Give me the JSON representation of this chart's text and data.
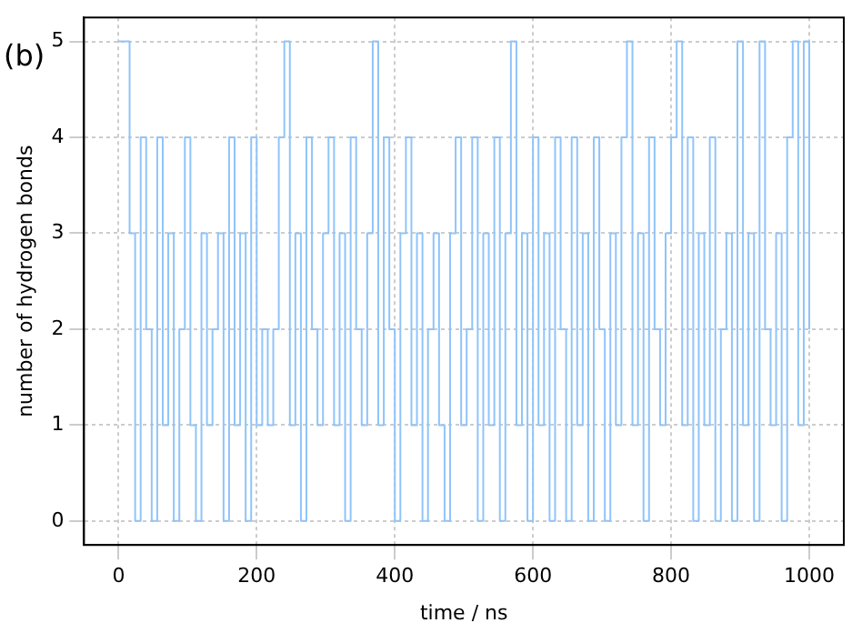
{
  "chart_data": {
    "type": "step",
    "xlabel": "time / ns",
    "ylabel": "number of hydrogen bonds",
    "annotations": [
      "(b)"
    ],
    "x": [
      0,
      8,
      16,
      24,
      32,
      40,
      48,
      56,
      64,
      72,
      80,
      88,
      96,
      104,
      112,
      120,
      128,
      136,
      144,
      152,
      160,
      168,
      176,
      184,
      192,
      200,
      208,
      216,
      224,
      232,
      240,
      248,
      256,
      264,
      272,
      280,
      288,
      296,
      304,
      312,
      320,
      328,
      336,
      344,
      352,
      360,
      368,
      376,
      384,
      392,
      400,
      408,
      416,
      424,
      432,
      440,
      448,
      456,
      464,
      472,
      480,
      488,
      496,
      504,
      512,
      520,
      528,
      536,
      544,
      552,
      560,
      568,
      576,
      584,
      592,
      600,
      608,
      616,
      624,
      632,
      640,
      648,
      656,
      664,
      672,
      680,
      688,
      696,
      704,
      712,
      720,
      728,
      736,
      744,
      752,
      760,
      768,
      776,
      784,
      792,
      800,
      808,
      816,
      824,
      832,
      840,
      848,
      856,
      864,
      872,
      880,
      888,
      896,
      904,
      912,
      920,
      928,
      936,
      944,
      952,
      960,
      968,
      976,
      984,
      992,
      1000
    ],
    "series": [
      {
        "color": "#90c4fa",
        "values": [
          5,
          5,
          3,
          0,
          4,
          2,
          0,
          4,
          1,
          3,
          0,
          2,
          4,
          1,
          0,
          3,
          1,
          2,
          3,
          0,
          4,
          1,
          3,
          0,
          4,
          1,
          2,
          1,
          2,
          4,
          5,
          1,
          3,
          0,
          4,
          2,
          1,
          3,
          4,
          1,
          3,
          0,
          4,
          2,
          1,
          3,
          5,
          1,
          4,
          2,
          0,
          3,
          4,
          1,
          3,
          0,
          2,
          3,
          1,
          0,
          3,
          4,
          1,
          2,
          4,
          0,
          3,
          1,
          4,
          0,
          3,
          5,
          1,
          3,
          0,
          4,
          1,
          3,
          0,
          4,
          2,
          0,
          4,
          1,
          3,
          0,
          4,
          2,
          0,
          3,
          1,
          4,
          5,
          1,
          3,
          0,
          4,
          2,
          1,
          3,
          4,
          5,
          1,
          4,
          0,
          3,
          1,
          4,
          0,
          2,
          3,
          0,
          5,
          1,
          3,
          0,
          5,
          2,
          1,
          3,
          0,
          4,
          5,
          1,
          5,
          2
        ]
      }
    ],
    "xlim": [
      -50,
      1050
    ],
    "ylim": [
      -0.25,
      5.25
    ],
    "xticks": [
      0,
      200,
      400,
      600,
      800,
      1000
    ],
    "yticks": [
      0,
      1,
      2,
      3,
      4,
      5
    ],
    "grid": true,
    "legend": false,
    "marker": "none",
    "line_style": "solid"
  }
}
